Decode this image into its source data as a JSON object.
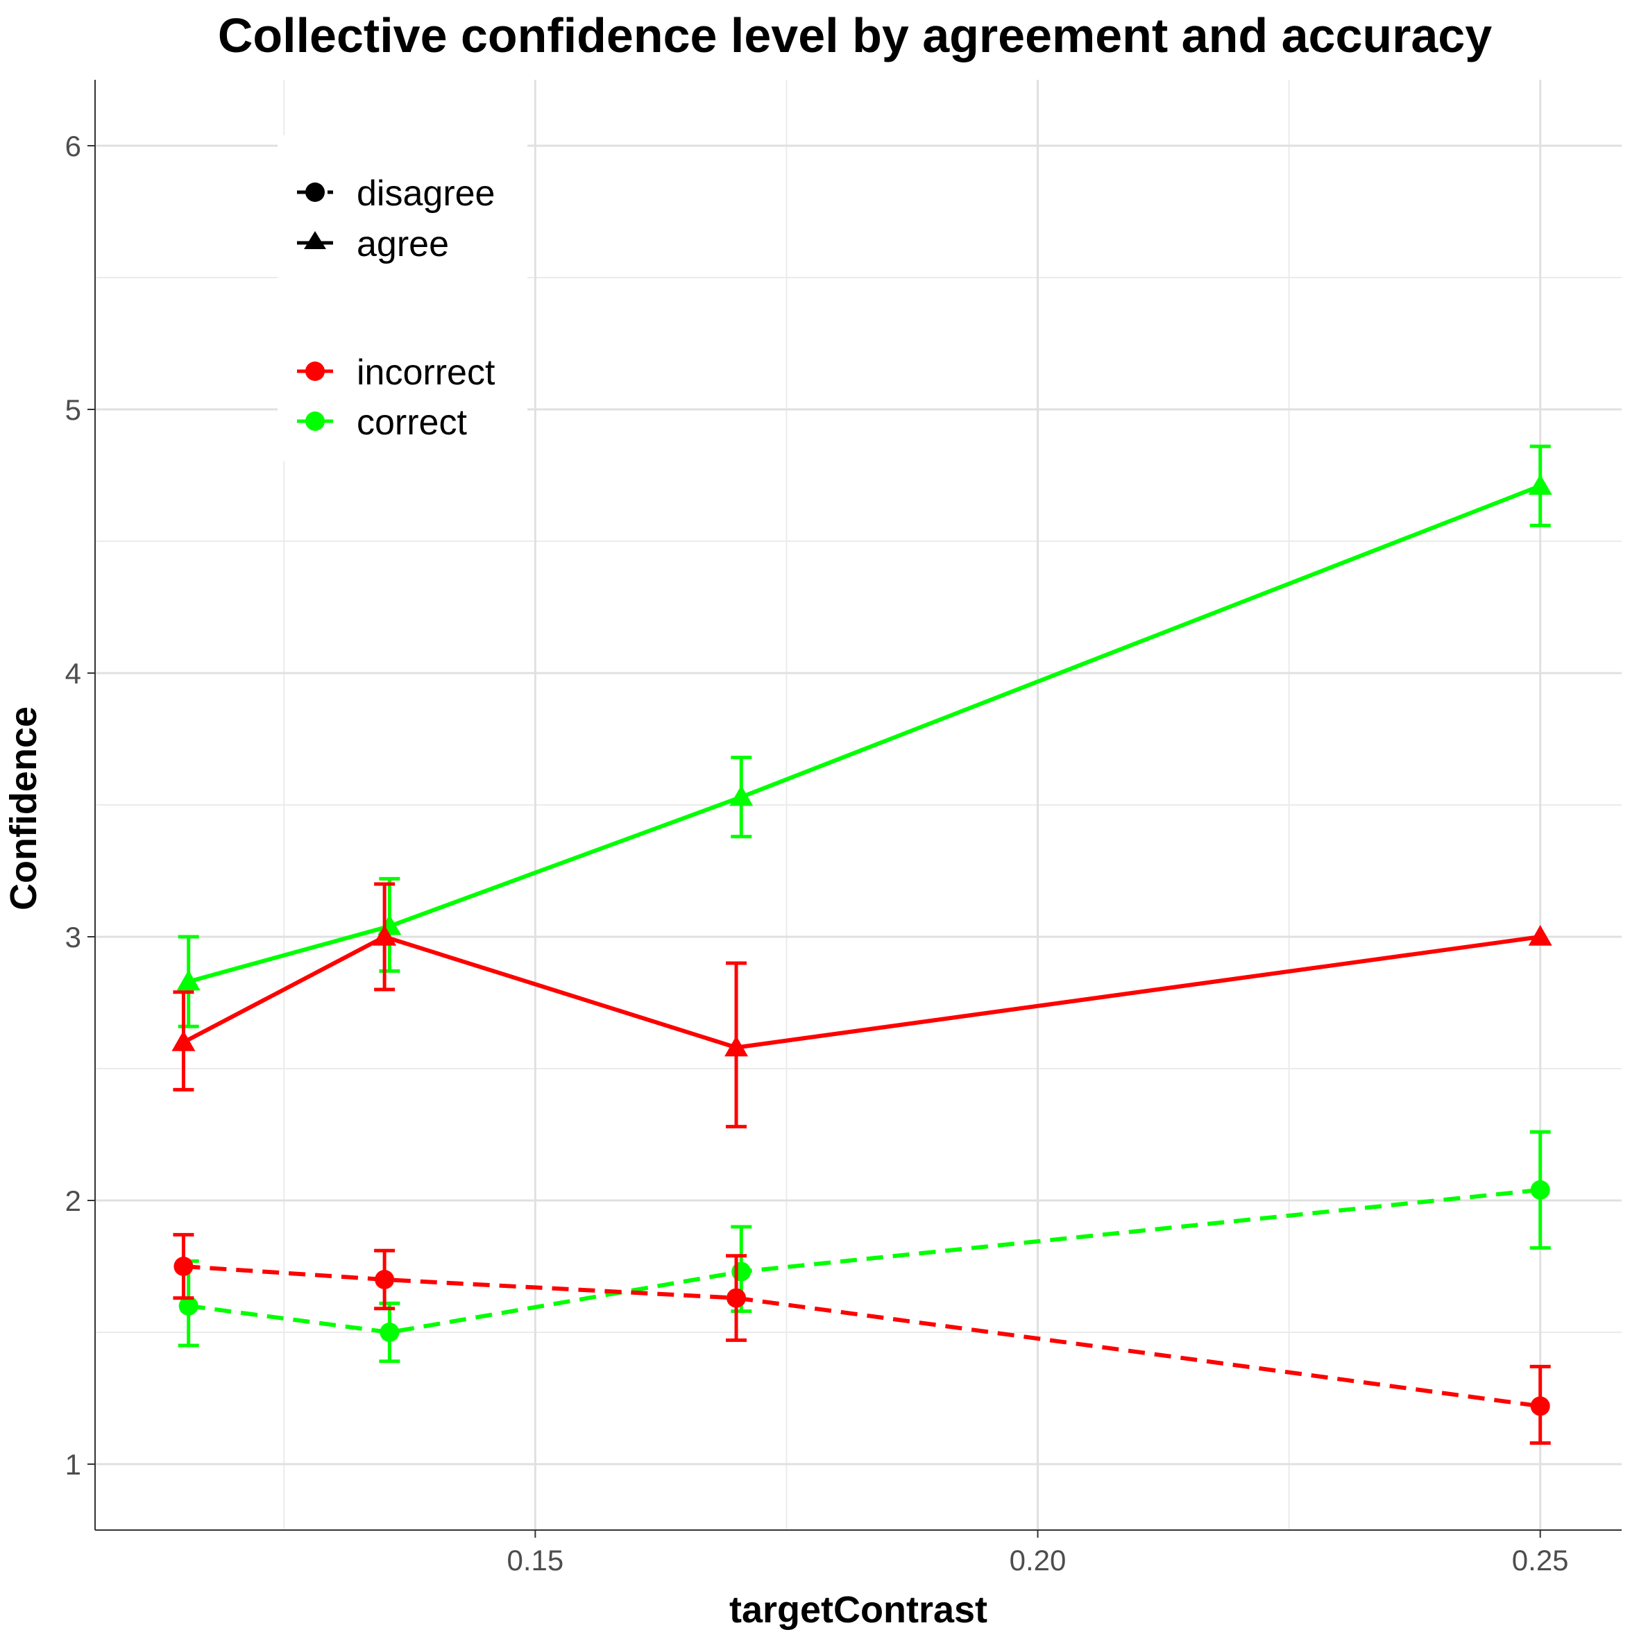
{
  "chart_data": {
    "type": "line",
    "title": "Collective confidence level by agreement and accuracy",
    "xlabel": "targetContrast",
    "ylabel": "Confidence",
    "xlim": [
      0.1062,
      0.2581
    ],
    "ylim": [
      0.75,
      6.25
    ],
    "x_ticks": [
      0.15,
      0.2,
      0.25
    ],
    "x_tick_labels": [
      "0.15",
      "0.20",
      "0.25"
    ],
    "y_ticks": [
      1,
      2,
      3,
      4,
      5,
      6
    ],
    "y_tick_labels": [
      "1",
      "2",
      "3",
      "4",
      "5",
      "6"
    ],
    "grid": true,
    "legend": {
      "placement": "top-left",
      "shape_entries": [
        {
          "label": "disagree",
          "shape": "circle",
          "linetype": "dashed"
        },
        {
          "label": "agree",
          "shape": "triangle",
          "linetype": "solid"
        }
      ],
      "color_entries": [
        {
          "label": "incorrect",
          "color": "#ff0000"
        },
        {
          "label": "correct",
          "color": "#00ff00"
        }
      ]
    },
    "series": [
      {
        "agreement": "agree",
        "accuracy": "correct",
        "color": "#00ff00",
        "shape": "triangle",
        "linetype": "solid",
        "x": [
          0.1155,
          0.1355,
          0.1705,
          0.25
        ],
        "y": [
          2.83,
          3.04,
          3.53,
          4.71
        ],
        "err_low": [
          2.66,
          2.87,
          3.38,
          4.56
        ],
        "err_high": [
          3.0,
          3.22,
          3.68,
          4.86
        ]
      },
      {
        "agreement": "agree",
        "accuracy": "incorrect",
        "color": "#ff0000",
        "shape": "triangle",
        "linetype": "solid",
        "x": [
          0.115,
          0.135,
          0.17,
          0.25
        ],
        "y": [
          2.6,
          3.0,
          2.58,
          3.0
        ],
        "err_low": [
          2.42,
          2.8,
          2.28,
          3.0
        ],
        "err_high": [
          2.79,
          3.2,
          2.9,
          3.0
        ]
      },
      {
        "agreement": "disagree",
        "accuracy": "correct",
        "color": "#00ff00",
        "shape": "circle",
        "linetype": "dashed",
        "x": [
          0.1155,
          0.1355,
          0.1705,
          0.25
        ],
        "y": [
          1.6,
          1.5,
          1.73,
          2.04
        ],
        "err_low": [
          1.45,
          1.39,
          1.58,
          1.82
        ],
        "err_high": [
          1.77,
          1.61,
          1.9,
          2.26
        ]
      },
      {
        "agreement": "disagree",
        "accuracy": "incorrect",
        "color": "#ff0000",
        "shape": "circle",
        "linetype": "dashed",
        "x": [
          0.115,
          0.135,
          0.17,
          0.25
        ],
        "y": [
          1.75,
          1.7,
          1.63,
          1.22
        ],
        "err_low": [
          1.63,
          1.59,
          1.47,
          1.08
        ],
        "err_high": [
          1.87,
          1.81,
          1.79,
          1.37
        ]
      }
    ]
  }
}
